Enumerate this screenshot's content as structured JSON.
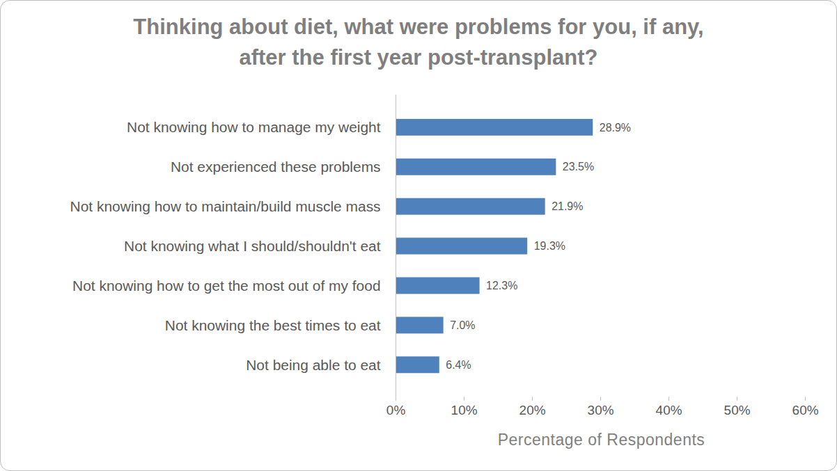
{
  "chart_data": {
    "type": "bar",
    "title": "Thinking about diet, what were problems for you, if any,\nafter the first year post-transplant?",
    "orientation": "horizontal",
    "categories": [
      "Not knowing how to manage my weight",
      "Not experienced these problems",
      "Not knowing how to maintain/build muscle mass",
      "Not knowing what I should/shouldn't eat",
      "Not knowing how to get the most out of my food",
      "Not knowing the best times to eat",
      "Not being able to eat"
    ],
    "values": [
      28.9,
      23.5,
      21.9,
      19.3,
      12.3,
      7.0,
      6.4
    ],
    "value_labels": [
      "28.9%",
      "23.5%",
      "21.9%",
      "19.3%",
      "12.3%",
      "7.0%",
      "6.4%"
    ],
    "data_labels": true,
    "color": "#4f81bd",
    "xlabel": "Percentage of Respondents",
    "xlim": [
      0,
      60
    ],
    "xticks": [
      {
        "value": 0,
        "label": "0%"
      },
      {
        "value": 10,
        "label": "10%"
      },
      {
        "value": 20,
        "label": "20%"
      },
      {
        "value": 30,
        "label": "30%"
      },
      {
        "value": 40,
        "label": "40%"
      },
      {
        "value": 50,
        "label": "50%"
      },
      {
        "value": 60,
        "label": "60%"
      }
    ],
    "grid": false
  }
}
